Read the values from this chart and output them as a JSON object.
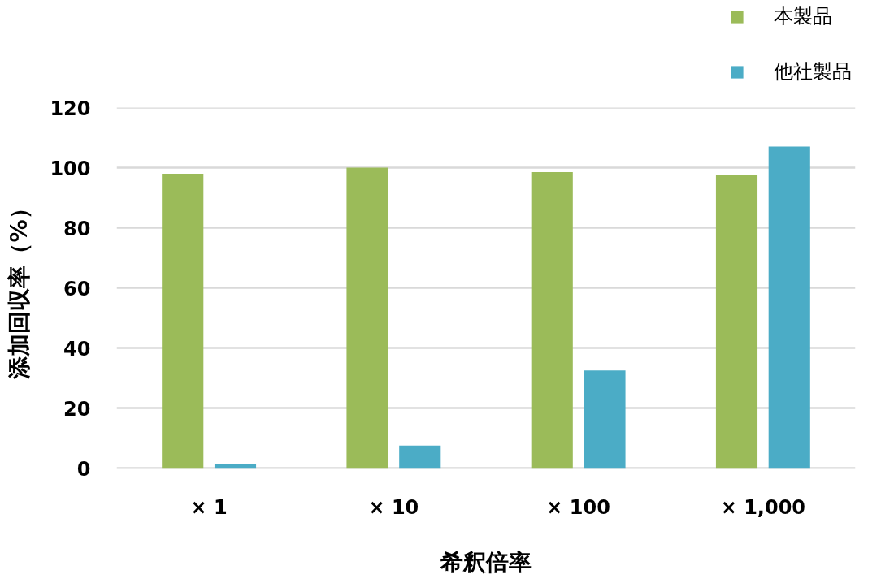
{
  "chart_data": {
    "type": "bar",
    "xlabel": "希釈倍率",
    "ylabel": "添加回収率（%）",
    "categories": [
      "× 1",
      "× 10",
      "× 100",
      "× 1,000"
    ],
    "series": [
      {
        "name": "本製品",
        "color": "#9bbb59",
        "values": [
          98,
          100,
          98.5,
          97.5
        ]
      },
      {
        "name": "他社製品",
        "color": "#4bacc6",
        "values": [
          1.5,
          7.5,
          32.5,
          107
        ]
      }
    ],
    "ylim": [
      0,
      120
    ],
    "yticks": [
      0,
      20,
      40,
      60,
      80,
      100,
      120
    ],
    "grid": "y",
    "legend": "top right"
  }
}
